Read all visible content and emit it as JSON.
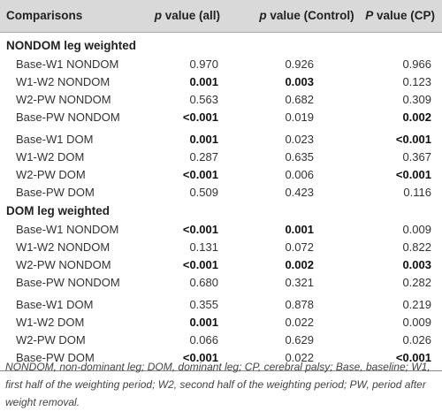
{
  "header": {
    "col0": "Comparisons",
    "col1": "p value (all)",
    "col2": "p value (Control)",
    "col3": "P value (CP)"
  },
  "sections": [
    {
      "title": "NONDOM leg weighted",
      "groups": [
        [
          {
            "label": "Base-W1 NONDOM",
            "all": "0.970",
            "control": "0.926",
            "cp": "0.966"
          },
          {
            "label": "W1-W2 NONDOM",
            "all": "0.001",
            "control": "0.003",
            "cp": "0.123"
          },
          {
            "label": "W2-PW NONDOM",
            "all": "0.563",
            "control": "0.682",
            "cp": "0.309"
          },
          {
            "label": "Base-PW NONDOM",
            "all": "<0.001",
            "control": "0.019",
            "cp": "0.002"
          }
        ],
        [
          {
            "label": "Base-W1 DOM",
            "all": "0.001",
            "control": "0.023",
            "cp": "<0.001"
          },
          {
            "label": "W1-W2 DOM",
            "all": "0.287",
            "control": "0.635",
            "cp": "0.367"
          },
          {
            "label": "W2-PW DOM",
            "all": "<0.001",
            "control": "0.006",
            "cp": "<0.001"
          },
          {
            "label": "Base-PW DOM",
            "all": "0.509",
            "control": "0.423",
            "cp": "0.116"
          }
        ]
      ]
    },
    {
      "title": "DOM leg weighted",
      "groups": [
        [
          {
            "label": "Base-W1 NONDOM",
            "all": "<0.001",
            "control": "0.001",
            "cp": "0.009"
          },
          {
            "label": "W1-W2 NONDOM",
            "all": "0.131",
            "control": "0.072",
            "cp": "0.822"
          },
          {
            "label": "W2-PW NONDOM",
            "all": "<0.001",
            "control": "0.002",
            "cp": "0.003"
          },
          {
            "label": "Base-PW NONDOM",
            "all": "0.680",
            "control": "0.321",
            "cp": "0.282"
          }
        ],
        [
          {
            "label": "Base-W1 DOM",
            "all": "0.355",
            "control": "0.878",
            "cp": "0.219"
          },
          {
            "label": "W1-W2 DOM",
            "all": "0.001",
            "control": "0.022",
            "cp": "0.009"
          },
          {
            "label": "W2-PW DOM",
            "all": "0.066",
            "control": "0.629",
            "cp": "0.026"
          },
          {
            "label": "Base-PW DOM",
            "all": "<0.001",
            "control": "0.022",
            "cp": "<0.001"
          }
        ]
      ]
    }
  ],
  "footnote": "NONDOM, non-dominant leg; DOM, dominant leg; CP, cerebral palsy; Base, baseline; W1, first half of the weighting period; W2, second half of the weighting period; PW, period after weight removal."
}
